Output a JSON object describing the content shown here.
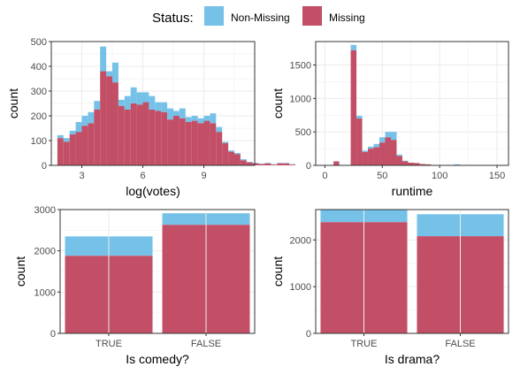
{
  "legend": {
    "title": "Status:",
    "items": [
      {
        "label": "Non-Missing",
        "color": "#75C1E8"
      },
      {
        "label": "Missing",
        "color": "#C34F67"
      }
    ]
  },
  "chart_data": [
    {
      "type": "bar",
      "subtype": "stacked-histogram",
      "xlabel": "log(votes)",
      "ylabel": "count",
      "xlim": [
        1.5,
        11.5
      ],
      "ylim": [
        0,
        500
      ],
      "xticks": [
        3,
        6,
        9
      ],
      "yticks": [
        0,
        100,
        200,
        300,
        400,
        500
      ],
      "grid": true,
      "bin_start": 1.8,
      "bin_width": 0.3,
      "series": [
        {
          "name": "Missing",
          "values": [
            110,
            95,
            125,
            135,
            160,
            170,
            225,
            380,
            360,
            335,
            240,
            225,
            250,
            245,
            255,
            225,
            220,
            215,
            185,
            200,
            190,
            175,
            180,
            170,
            180,
            170,
            135,
            90,
            55,
            45,
            20,
            12,
            8,
            5,
            8,
            3,
            8,
            8,
            3
          ]
        },
        {
          "name": "Non-Missing",
          "values": [
            12,
            15,
            15,
            40,
            40,
            45,
            35,
            100,
            20,
            80,
            25,
            55,
            65,
            50,
            40,
            55,
            35,
            40,
            45,
            20,
            40,
            20,
            20,
            20,
            20,
            40,
            20,
            5,
            5,
            5,
            5,
            2,
            2,
            2,
            2,
            2,
            2,
            2,
            2
          ]
        }
      ]
    },
    {
      "type": "bar",
      "subtype": "stacked-histogram",
      "xlabel": "runtime",
      "ylabel": "count",
      "xlim": [
        -8,
        160
      ],
      "ylim": [
        0,
        1850
      ],
      "xticks": [
        0,
        50,
        100,
        150
      ],
      "yticks": [
        0,
        500,
        1000,
        1500
      ],
      "grid": true,
      "bin_start": 7.5,
      "bin_width": 5,
      "series": [
        {
          "name": "Missing",
          "values": [
            60,
            0,
            0,
            1720,
            700,
            200,
            250,
            270,
            340,
            420,
            380,
            140,
            60,
            40,
            35,
            20,
            15,
            5,
            5,
            0,
            0,
            5,
            0,
            0,
            0,
            0,
            0,
            0,
            0
          ]
        },
        {
          "name": "Non-Missing",
          "values": [
            0,
            0,
            0,
            80,
            40,
            20,
            30,
            50,
            80,
            80,
            120,
            20,
            10,
            0,
            0,
            0,
            0,
            0,
            0,
            0,
            0,
            10,
            0,
            0,
            0,
            0,
            0,
            0,
            0
          ]
        }
      ]
    },
    {
      "type": "bar",
      "subtype": "stacked",
      "xlabel": "Is comedy?",
      "ylabel": "count",
      "categories": [
        "TRUE",
        "FALSE"
      ],
      "ylim": [
        0,
        3000
      ],
      "yticks": [
        0,
        1000,
        2000,
        3000
      ],
      "grid": true,
      "series": [
        {
          "name": "Missing",
          "values": [
            1880,
            2630
          ]
        },
        {
          "name": "Non-Missing",
          "values": [
            470,
            280
          ]
        }
      ]
    },
    {
      "type": "bar",
      "subtype": "stacked",
      "xlabel": "Is drama?",
      "ylabel": "count",
      "categories": [
        "TRUE",
        "FALSE"
      ],
      "ylim": [
        0,
        2650
      ],
      "yticks": [
        0,
        1000,
        2000
      ],
      "grid": true,
      "series": [
        {
          "name": "Missing",
          "values": [
            2380,
            2080
          ]
        },
        {
          "name": "Non-Missing",
          "values": [
            270,
            470
          ]
        }
      ]
    }
  ]
}
